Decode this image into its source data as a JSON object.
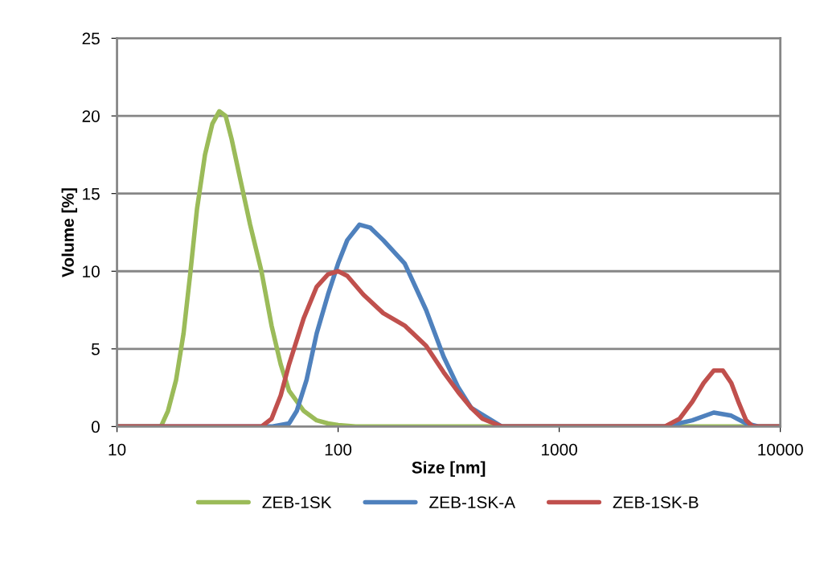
{
  "chart_data": {
    "type": "line",
    "xlabel": "Size [nm]",
    "ylabel": "Volume [%]",
    "log": "x",
    "xlim": [
      10,
      10000
    ],
    "xticks": [
      10,
      100,
      1000,
      10000
    ],
    "ylim": [
      0,
      25
    ],
    "yticks": [
      0,
      5,
      10,
      15,
      20,
      25
    ],
    "grid": "y",
    "legend": "bottom",
    "marker": "none",
    "line_style": "solid",
    "series": [
      {
        "name": "ZEB-1SK",
        "color": "#9bbb59",
        "x": [
          10,
          15.8,
          17,
          18.5,
          20,
          21.5,
          23,
          25,
          27,
          29,
          31,
          33,
          36,
          40,
          45,
          50,
          55,
          60,
          70,
          80,
          90,
          100,
          120,
          10000
        ],
        "values": [
          0,
          0,
          1,
          3,
          6,
          10,
          14,
          17.5,
          19.5,
          20.3,
          20,
          18.5,
          16,
          13,
          10,
          6.5,
          4,
          2.3,
          1,
          0.4,
          0.2,
          0.1,
          0,
          0
        ]
      },
      {
        "name": "ZEB-1SK-A",
        "color": "#4f81bd",
        "x": [
          10,
          50,
          60,
          65,
          72,
          80,
          90,
          100,
          110,
          125,
          140,
          160,
          200,
          250,
          300,
          350,
          400,
          550,
          3000,
          4000,
          5000,
          6000,
          7000,
          8000,
          10000
        ],
        "values": [
          0,
          0,
          0.2,
          1,
          3,
          6,
          8.5,
          10.5,
          12,
          13,
          12.8,
          12,
          10.5,
          7.5,
          4.5,
          2.5,
          1.2,
          0,
          0,
          0.4,
          0.9,
          0.7,
          0.2,
          0,
          0
        ]
      },
      {
        "name": "ZEB-1SK-B",
        "color": "#c0504d",
        "x": [
          10,
          45,
          50,
          55,
          60,
          70,
          80,
          90,
          100,
          110,
          130,
          160,
          200,
          250,
          300,
          350,
          400,
          450,
          550,
          3000,
          3500,
          4000,
          4500,
          5000,
          5500,
          6000,
          6500,
          7000,
          7500,
          10000
        ],
        "values": [
          0,
          0,
          0.5,
          2,
          4,
          7,
          9,
          9.8,
          10,
          9.7,
          8.5,
          7.3,
          6.5,
          5.2,
          3.5,
          2.2,
          1.2,
          0.5,
          0,
          0,
          0.5,
          1.6,
          2.8,
          3.6,
          3.6,
          2.8,
          1.5,
          0.4,
          0,
          0
        ]
      }
    ]
  }
}
